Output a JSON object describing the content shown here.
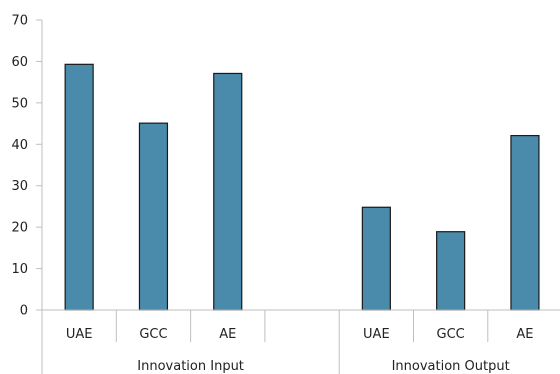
{
  "chart_data": {
    "type": "bar",
    "ylabel": "",
    "ylim": [
      0,
      70
    ],
    "yticks": [
      0,
      10,
      20,
      30,
      40,
      50,
      60,
      70
    ],
    "grid": false,
    "bar_color": "#4a8aab",
    "groups": [
      {
        "label": "Innovation Input",
        "categories": [
          "UAE",
          "GCC",
          "AE",
          ""
        ],
        "values": [
          59.3,
          45.1,
          57.1,
          null
        ]
      },
      {
        "label": "Innovation Output",
        "categories": [
          "UAE",
          "GCC",
          "AE"
        ],
        "values": [
          24.8,
          18.9,
          42.1
        ]
      }
    ]
  }
}
